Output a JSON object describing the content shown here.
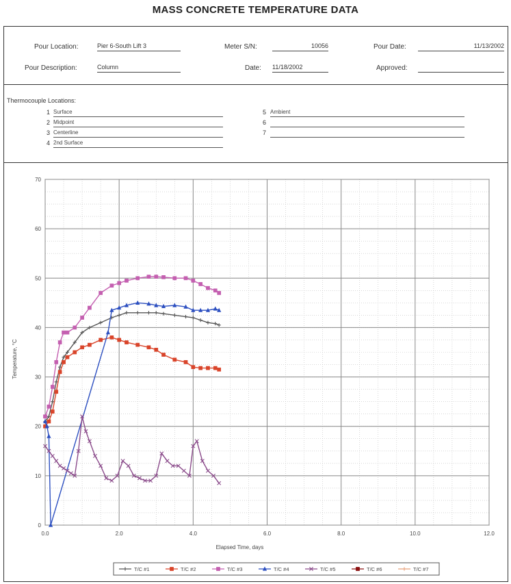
{
  "page": {
    "title": "MASS CONCRETE TEMPERATURE DATA"
  },
  "header": {
    "pour_location_label": "Pour Location:",
    "pour_location_value": "Pier 6-South Lift 3",
    "meter_sn_label": "Meter S/N:",
    "meter_sn_value": "10056",
    "pour_date_label": "Pour Date:",
    "pour_date_value": "11/13/2002",
    "pour_description_label": "Pour Description:",
    "pour_description_value": "Column",
    "date_label": "Date:",
    "date_value": "11/18/2002",
    "approved_label": "Approved:",
    "approved_value": ""
  },
  "thermocouples": {
    "heading": "Thermocouple Locations:",
    "items": [
      {
        "num": "1",
        "name": "Surface"
      },
      {
        "num": "2",
        "name": "Midpoint"
      },
      {
        "num": "3",
        "name": "Centerline"
      },
      {
        "num": "4",
        "name": "2nd Surface"
      },
      {
        "num": "5",
        "name": "Ambient"
      },
      {
        "num": "6",
        "name": ""
      },
      {
        "num": "7",
        "name": ""
      }
    ]
  },
  "chart_data": {
    "type": "line",
    "title": "",
    "xlabel": "Elapsed Time, days",
    "ylabel": "Temperature, °C",
    "xlim": [
      0,
      12
    ],
    "ylim": [
      0,
      70
    ],
    "x_ticks": [
      "0.0",
      "2.0",
      "4.0",
      "6.0",
      "8.0",
      "10.0",
      "12.0"
    ],
    "y_ticks": [
      "0",
      "10",
      "20",
      "30",
      "40",
      "50",
      "60",
      "70"
    ],
    "grid": true,
    "legend_position": "bottom",
    "series": [
      {
        "name": "T/C #1",
        "color": "#555555",
        "marker": "cross",
        "x": [
          0.0,
          0.1,
          0.2,
          0.3,
          0.4,
          0.5,
          0.6,
          0.8,
          1.0,
          1.2,
          1.5,
          1.8,
          2.0,
          2.2,
          2.5,
          2.8,
          3.0,
          3.2,
          3.5,
          3.8,
          4.0,
          4.2,
          4.4,
          4.6,
          4.7
        ],
        "y": [
          21,
          22,
          25,
          29,
          32,
          34,
          35,
          37,
          39,
          40,
          41,
          42,
          42.5,
          43,
          43,
          43,
          43,
          42.8,
          42.5,
          42.2,
          42,
          41.5,
          41,
          40.8,
          40.5
        ]
      },
      {
        "name": "T/C #2",
        "color": "#d9442a",
        "marker": "square",
        "x": [
          0.0,
          0.1,
          0.2,
          0.3,
          0.4,
          0.5,
          0.6,
          0.8,
          1.0,
          1.2,
          1.5,
          1.8,
          2.0,
          2.2,
          2.5,
          2.8,
          3.0,
          3.2,
          3.5,
          3.8,
          4.0,
          4.2,
          4.4,
          4.6,
          4.7
        ],
        "y": [
          20,
          21,
          23,
          27,
          31,
          33,
          34,
          35,
          36,
          36.5,
          37.5,
          38,
          37.5,
          37,
          36.5,
          36,
          35.5,
          34.5,
          33.5,
          33,
          32,
          31.8,
          31.8,
          31.8,
          31.5
        ]
      },
      {
        "name": "T/C #3",
        "color": "#c45fb0",
        "marker": "square",
        "x": [
          0.0,
          0.1,
          0.2,
          0.3,
          0.4,
          0.5,
          0.6,
          0.8,
          1.0,
          1.2,
          1.5,
          1.8,
          2.0,
          2.2,
          2.5,
          2.8,
          3.0,
          3.2,
          3.5,
          3.8,
          4.0,
          4.2,
          4.4,
          4.6,
          4.7
        ],
        "y": [
          22,
          24,
          28,
          33,
          37,
          39,
          39,
          40,
          42,
          44,
          47,
          48.5,
          49,
          49.5,
          50,
          50.3,
          50.3,
          50.2,
          50,
          50,
          49.5,
          48.8,
          48,
          47.5,
          47
        ]
      },
      {
        "name": "T/C #4",
        "color": "#2c4fc0",
        "marker": "triangle",
        "x": [
          0.0,
          0.05,
          0.1,
          0.15,
          1.7,
          1.8,
          2.0,
          2.2,
          2.5,
          2.8,
          3.0,
          3.2,
          3.5,
          3.8,
          4.0,
          4.2,
          4.4,
          4.6,
          4.7
        ],
        "y": [
          21,
          20,
          18,
          0,
          39,
          43.5,
          44,
          44.5,
          45,
          44.8,
          44.5,
          44.3,
          44.5,
          44.2,
          43.5,
          43.5,
          43.5,
          43.8,
          43.5
        ]
      },
      {
        "name": "T/C #5",
        "color": "#8a4a8a",
        "marker": "x",
        "x": [
          0.0,
          0.1,
          0.2,
          0.3,
          0.4,
          0.5,
          0.6,
          0.7,
          0.8,
          0.9,
          1.0,
          1.1,
          1.2,
          1.35,
          1.5,
          1.65,
          1.8,
          1.95,
          2.1,
          2.25,
          2.4,
          2.55,
          2.7,
          2.85,
          3.0,
          3.15,
          3.3,
          3.45,
          3.6,
          3.75,
          3.9,
          4.0,
          4.1,
          4.25,
          4.4,
          4.55,
          4.7
        ],
        "y": [
          16,
          15,
          14,
          13,
          12,
          11.5,
          11,
          10.5,
          10,
          15,
          22,
          19,
          17,
          14,
          12,
          9.5,
          9,
          10,
          13,
          12,
          10,
          9.5,
          9,
          9,
          10,
          14.5,
          13,
          12,
          12,
          11,
          10,
          16,
          17,
          13,
          11,
          10,
          8.5
        ]
      },
      {
        "name": "T/C #6",
        "color": "#8b1010",
        "marker": "square",
        "x": [],
        "y": []
      },
      {
        "name": "T/C #7",
        "color": "#e8a07a",
        "marker": "cross",
        "x": [],
        "y": []
      }
    ]
  }
}
